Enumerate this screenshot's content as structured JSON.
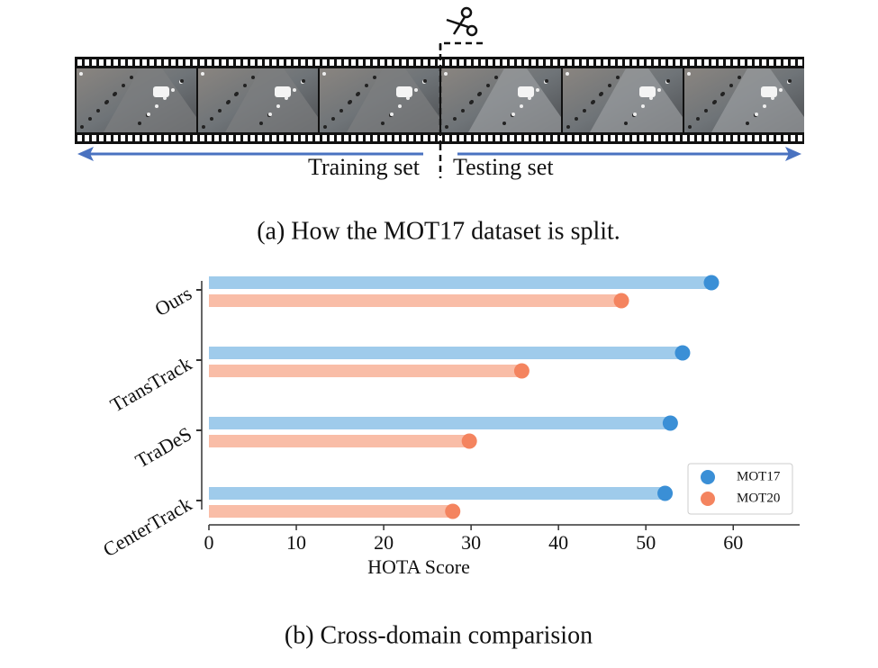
{
  "panel_a": {
    "left_label": "Training set",
    "right_label": "Testing set",
    "caption": "(a)  How the MOT17 dataset is split."
  },
  "chart_data": {
    "type": "lollipop",
    "orientation": "horizontal",
    "categories": [
      "Ours",
      "TransTrack",
      "TraDeS",
      "CenterTrack"
    ],
    "series": [
      {
        "name": "MOT17",
        "color": "#3a8fd6",
        "bar_color": "#9fcbeb",
        "values": [
          57.5,
          54.2,
          52.8,
          52.2
        ]
      },
      {
        "name": "MOT20",
        "color": "#f4845f",
        "bar_color": "#f9bda7",
        "values": [
          47.2,
          35.8,
          29.8,
          27.9
        ]
      }
    ],
    "xlabel": "HOTA Score",
    "xlim": [
      0,
      67.6
    ],
    "xticks": [
      0,
      10,
      20,
      30,
      40,
      50,
      60
    ],
    "legend": "lower right",
    "caption": "(b)  Cross-domain comparision"
  }
}
